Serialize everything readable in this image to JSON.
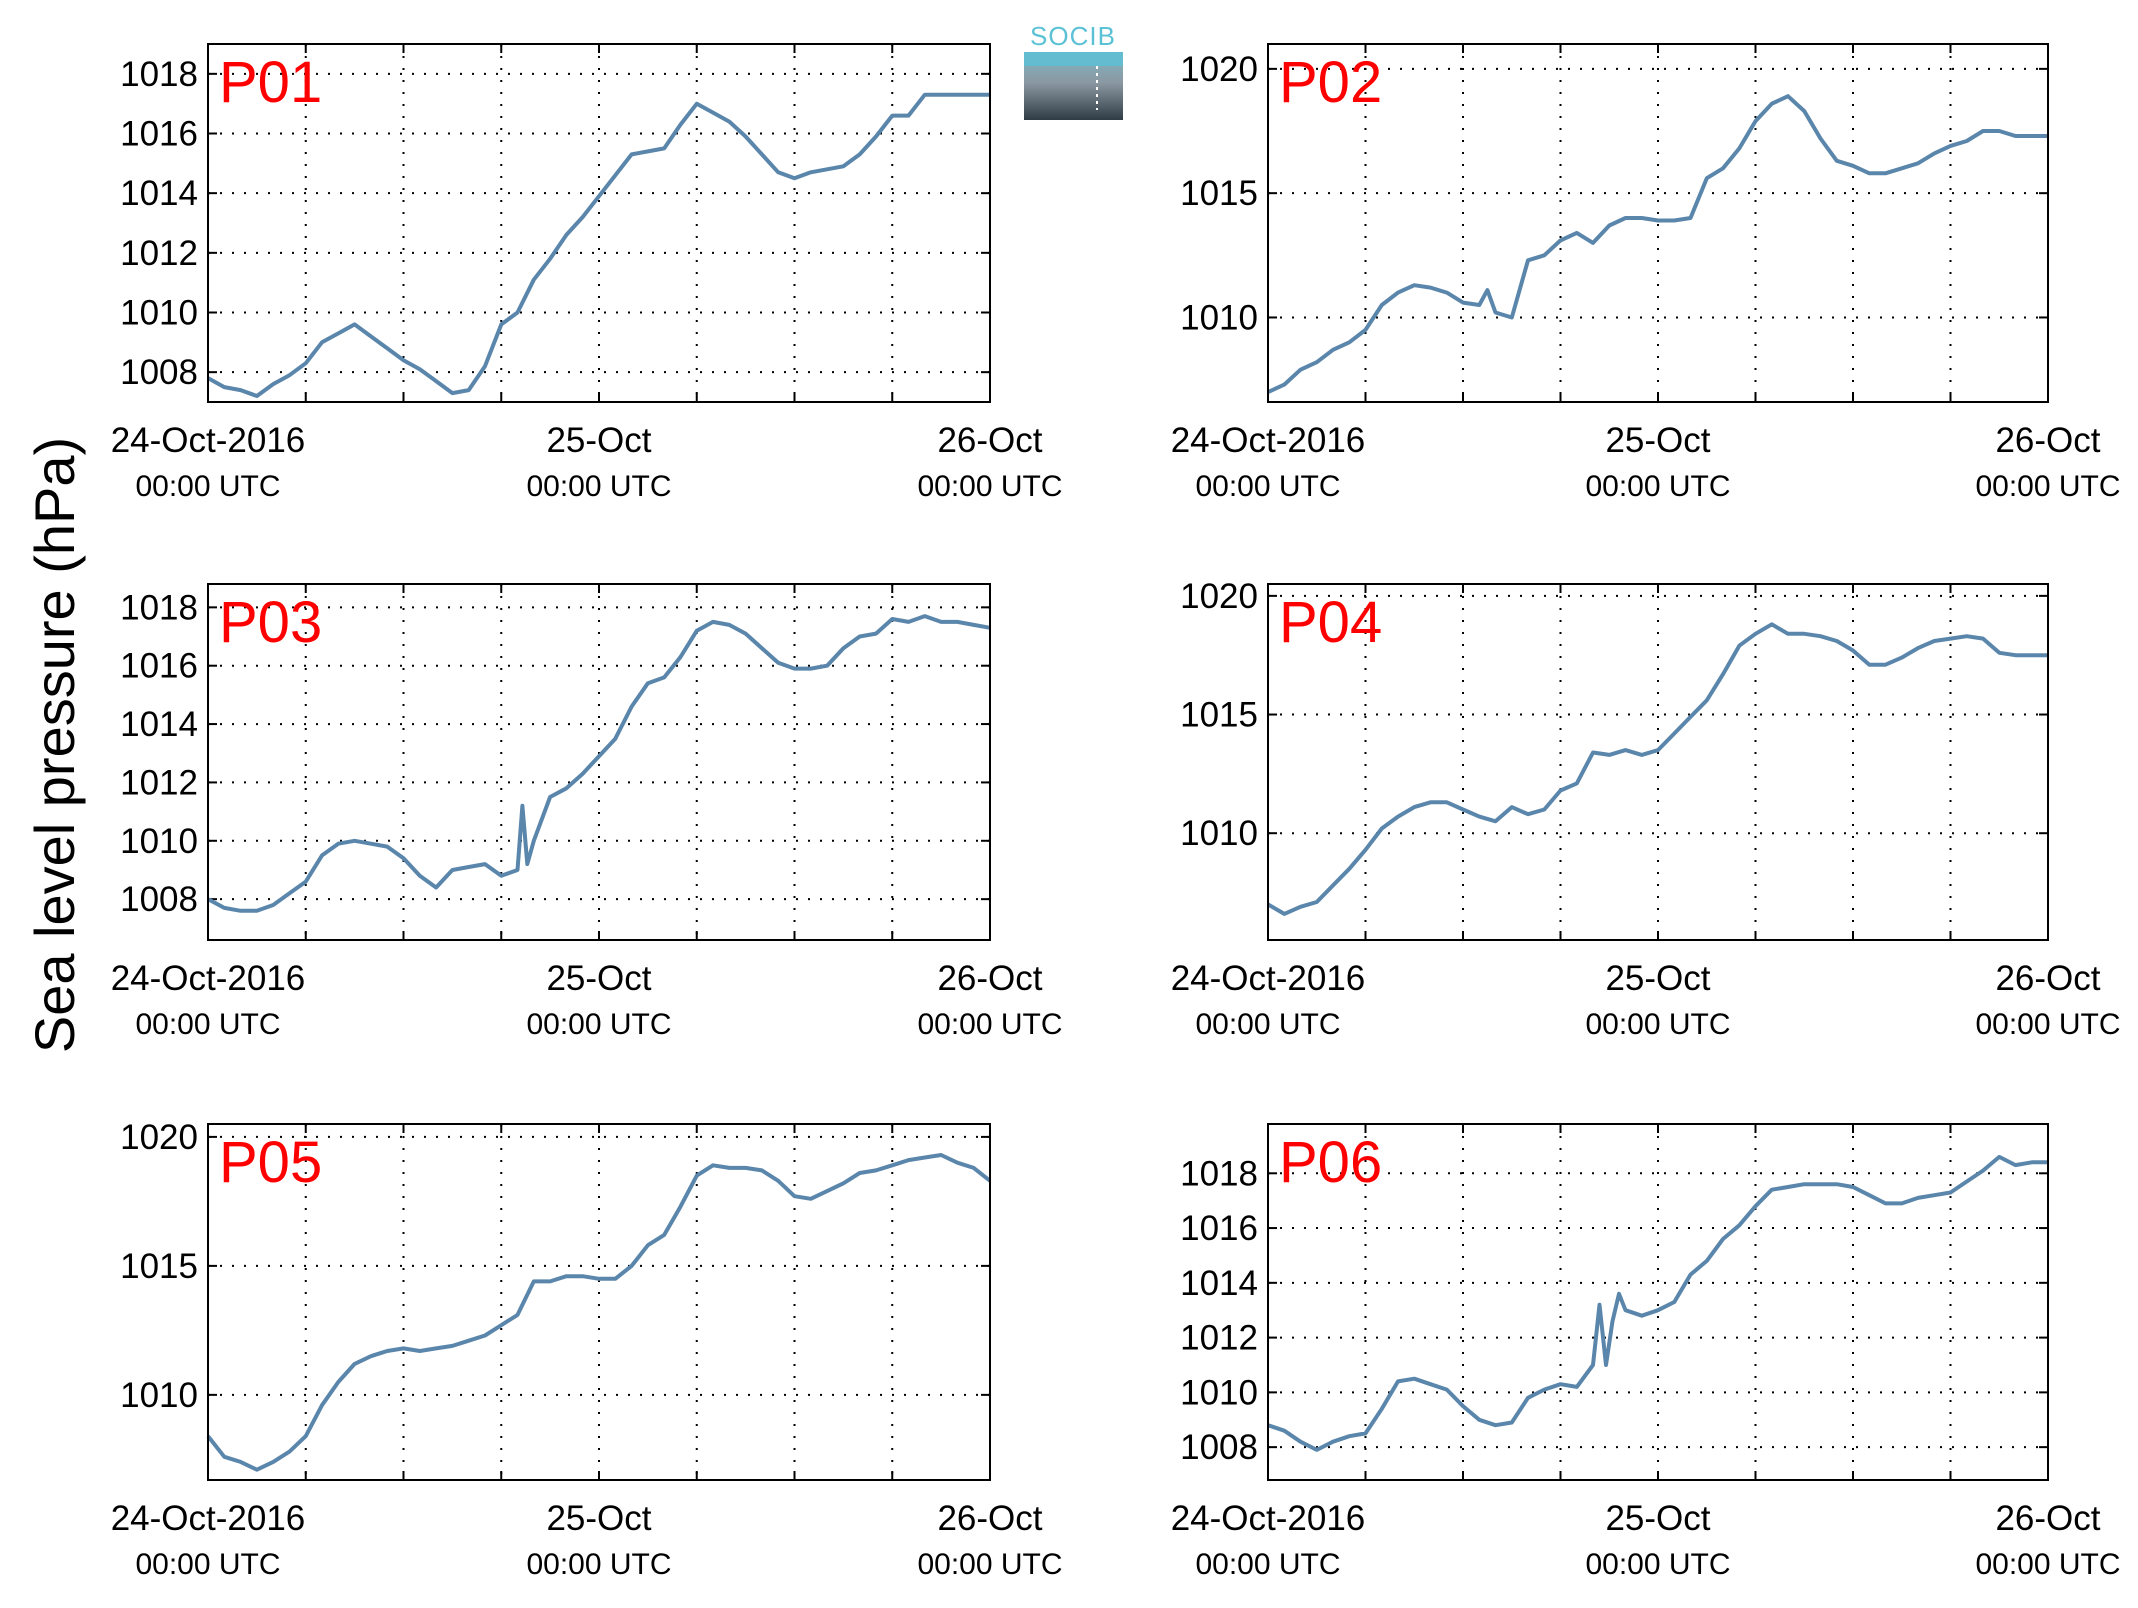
{
  "ylabel": "Sea level pressure (hPa)",
  "logo": {
    "text": "SOCIB"
  },
  "colors": {
    "line": "#5b86ab",
    "panel_label": "#ff0000",
    "grid": "#000000"
  },
  "x_tick_labels": [
    {
      "date": "24-Oct-2016",
      "time": "00:00 UTC"
    },
    {
      "date": "25-Oct",
      "time": "00:00 UTC"
    },
    {
      "date": "26-Oct",
      "time": "00:00 UTC"
    }
  ],
  "chart_data": [
    {
      "type": "line",
      "label": "P01",
      "xlim": [
        0,
        48
      ],
      "ylim": [
        1007,
        1019
      ],
      "yticks": [
        1008,
        1010,
        1012,
        1014,
        1016,
        1018
      ],
      "x": [
        0,
        1,
        2,
        3,
        4,
        5,
        6,
        7,
        8,
        9,
        10,
        11,
        12,
        13,
        14,
        15,
        16,
        17,
        18,
        19,
        20,
        21,
        22,
        23,
        24,
        25,
        26,
        27,
        28,
        29,
        30,
        31,
        32,
        33,
        34,
        35,
        36,
        37,
        38,
        39,
        40,
        41,
        42,
        43,
        44,
        45,
        46,
        47,
        48
      ],
      "y": [
        1007.8,
        1007.5,
        1007.4,
        1007.2,
        1007.6,
        1007.9,
        1008.3,
        1009.0,
        1009.3,
        1009.6,
        1009.2,
        1008.8,
        1008.4,
        1008.1,
        1007.7,
        1007.3,
        1007.4,
        1008.2,
        1009.6,
        1010.0,
        1011.1,
        1011.8,
        1012.6,
        1013.2,
        1013.9,
        1014.6,
        1015.3,
        1015.4,
        1015.5,
        1016.3,
        1017.0,
        1016.7,
        1016.4,
        1015.9,
        1015.3,
        1014.7,
        1014.5,
        1014.7,
        1014.8,
        1014.9,
        1015.3,
        1015.9,
        1016.6,
        1016.6,
        1017.3,
        1017.3,
        1017.3,
        1017.3,
        1017.3
      ]
    },
    {
      "type": "line",
      "label": "P02",
      "xlim": [
        0,
        48
      ],
      "ylim": [
        1006.6,
        1021
      ],
      "yticks": [
        1010,
        1015,
        1020
      ],
      "x": [
        0,
        1,
        2,
        3,
        4,
        5,
        6,
        7,
        8,
        9,
        10,
        11,
        12,
        13,
        13.5,
        14,
        15,
        16,
        17,
        18,
        19,
        20,
        21,
        22,
        23,
        24,
        25,
        26,
        27,
        28,
        29,
        30,
        31,
        32,
        33,
        34,
        35,
        36,
        37,
        38,
        39,
        40,
        41,
        42,
        43,
        44,
        45,
        46,
        47,
        48
      ],
      "y": [
        1007.0,
        1007.3,
        1007.9,
        1008.2,
        1008.7,
        1009.0,
        1009.5,
        1010.5,
        1011.0,
        1011.3,
        1011.2,
        1011.0,
        1010.6,
        1010.5,
        1011.1,
        1010.2,
        1010.0,
        1012.3,
        1012.5,
        1013.1,
        1013.4,
        1013.0,
        1013.7,
        1014.0,
        1014.0,
        1013.9,
        1013.9,
        1014.0,
        1015.6,
        1016.0,
        1016.8,
        1017.9,
        1018.6,
        1018.9,
        1018.3,
        1017.2,
        1016.3,
        1016.1,
        1015.8,
        1015.8,
        1016.0,
        1016.2,
        1016.6,
        1016.9,
        1017.1,
        1017.5,
        1017.5,
        1017.3,
        1017.3,
        1017.3
      ]
    },
    {
      "type": "line",
      "label": "P03",
      "xlim": [
        0,
        48
      ],
      "ylim": [
        1006.6,
        1018.8
      ],
      "yticks": [
        1008,
        1010,
        1012,
        1014,
        1016,
        1018
      ],
      "x": [
        0,
        1,
        2,
        3,
        4,
        5,
        6,
        7,
        8,
        9,
        10,
        11,
        12,
        13,
        14,
        15,
        16,
        17,
        18,
        19,
        19.3,
        19.6,
        20,
        21,
        22,
        23,
        24,
        25,
        26,
        27,
        28,
        29,
        30,
        31,
        32,
        33,
        34,
        35,
        36,
        37,
        38,
        39,
        40,
        41,
        42,
        43,
        44,
        45,
        46,
        47,
        48
      ],
      "y": [
        1008.0,
        1007.7,
        1007.6,
        1007.6,
        1007.8,
        1008.2,
        1008.6,
        1009.5,
        1009.9,
        1010.0,
        1009.9,
        1009.8,
        1009.4,
        1008.8,
        1008.4,
        1009.0,
        1009.1,
        1009.2,
        1008.8,
        1009.0,
        1011.2,
        1009.2,
        1010.0,
        1011.5,
        1011.8,
        1012.3,
        1012.9,
        1013.5,
        1014.6,
        1015.4,
        1015.6,
        1016.3,
        1017.2,
        1017.5,
        1017.4,
        1017.1,
        1016.6,
        1016.1,
        1015.9,
        1015.9,
        1016.0,
        1016.6,
        1017.0,
        1017.1,
        1017.6,
        1017.5,
        1017.7,
        1017.5,
        1017.5,
        1017.4,
        1017.3
      ]
    },
    {
      "type": "line",
      "label": "P04",
      "xlim": [
        0,
        48
      ],
      "ylim": [
        1005.5,
        1020.5
      ],
      "yticks": [
        1010,
        1015,
        1020
      ],
      "x": [
        0,
        1,
        2,
        3,
        4,
        5,
        6,
        7,
        8,
        9,
        10,
        11,
        12,
        13,
        14,
        15,
        16,
        17,
        18,
        19,
        20,
        21,
        22,
        23,
        24,
        25,
        26,
        27,
        28,
        29,
        30,
        31,
        32,
        33,
        34,
        35,
        36,
        37,
        38,
        39,
        40,
        41,
        42,
        43,
        44,
        45,
        46,
        47,
        48
      ],
      "y": [
        1007.0,
        1006.6,
        1006.9,
        1007.1,
        1007.8,
        1008.5,
        1009.3,
        1010.2,
        1010.7,
        1011.1,
        1011.3,
        1011.3,
        1011.0,
        1010.7,
        1010.5,
        1011.1,
        1010.8,
        1011.0,
        1011.8,
        1012.1,
        1013.4,
        1013.3,
        1013.5,
        1013.3,
        1013.5,
        1014.2,
        1014.9,
        1015.6,
        1016.7,
        1017.9,
        1018.4,
        1018.8,
        1018.4,
        1018.4,
        1018.3,
        1018.1,
        1017.7,
        1017.1,
        1017.1,
        1017.4,
        1017.8,
        1018.1,
        1018.2,
        1018.3,
        1018.2,
        1017.6,
        1017.5,
        1017.5,
        1017.5
      ]
    },
    {
      "type": "line",
      "label": "P05",
      "xlim": [
        0,
        48
      ],
      "ylim": [
        1006.7,
        1020.5
      ],
      "yticks": [
        1010,
        1015,
        1020
      ],
      "x": [
        0,
        1,
        2,
        3,
        4,
        5,
        6,
        7,
        8,
        9,
        10,
        11,
        12,
        13,
        14,
        15,
        16,
        17,
        18,
        19,
        20,
        21,
        22,
        23,
        24,
        25,
        26,
        27,
        28,
        29,
        30,
        31,
        32,
        33,
        34,
        35,
        36,
        37,
        38,
        39,
        40,
        41,
        42,
        43,
        44,
        45,
        46,
        47,
        48
      ],
      "y": [
        1008.4,
        1007.6,
        1007.4,
        1007.1,
        1007.4,
        1007.8,
        1008.4,
        1009.6,
        1010.5,
        1011.2,
        1011.5,
        1011.7,
        1011.8,
        1011.7,
        1011.8,
        1011.9,
        1012.1,
        1012.3,
        1012.7,
        1013.1,
        1014.4,
        1014.4,
        1014.6,
        1014.6,
        1014.5,
        1014.5,
        1015.0,
        1015.8,
        1016.2,
        1017.3,
        1018.5,
        1018.9,
        1018.8,
        1018.8,
        1018.7,
        1018.3,
        1017.7,
        1017.6,
        1017.9,
        1018.2,
        1018.6,
        1018.7,
        1018.9,
        1019.1,
        1019.2,
        1019.3,
        1019.0,
        1018.8,
        1018.3
      ]
    },
    {
      "type": "line",
      "label": "P06",
      "xlim": [
        0,
        48
      ],
      "ylim": [
        1006.8,
        1019.8
      ],
      "yticks": [
        1008,
        1010,
        1012,
        1014,
        1016,
        1018
      ],
      "x": [
        0,
        1,
        2,
        3,
        4,
        5,
        6,
        7,
        8,
        9,
        10,
        11,
        12,
        13,
        14,
        15,
        16,
        17,
        18,
        19,
        20,
        20.4,
        20.8,
        21.2,
        21.6,
        22,
        23,
        24,
        25,
        26,
        27,
        28,
        29,
        30,
        31,
        32,
        33,
        34,
        35,
        36,
        37,
        38,
        39,
        40,
        41,
        42,
        43,
        44,
        45,
        46,
        47,
        48
      ],
      "y": [
        1008.8,
        1008.6,
        1008.2,
        1007.9,
        1008.2,
        1008.4,
        1008.5,
        1009.4,
        1010.4,
        1010.5,
        1010.3,
        1010.1,
        1009.5,
        1009.0,
        1008.8,
        1008.9,
        1009.8,
        1010.1,
        1010.3,
        1010.2,
        1011.0,
        1013.2,
        1011.0,
        1012.6,
        1013.6,
        1013.0,
        1012.8,
        1013.0,
        1013.3,
        1014.3,
        1014.8,
        1015.6,
        1016.1,
        1016.8,
        1017.4,
        1017.5,
        1017.6,
        1017.6,
        1017.6,
        1017.5,
        1017.2,
        1016.9,
        1016.9,
        1017.1,
        1017.2,
        1017.3,
        1017.7,
        1018.1,
        1018.6,
        1018.3,
        1018.4,
        1018.4
      ]
    }
  ]
}
